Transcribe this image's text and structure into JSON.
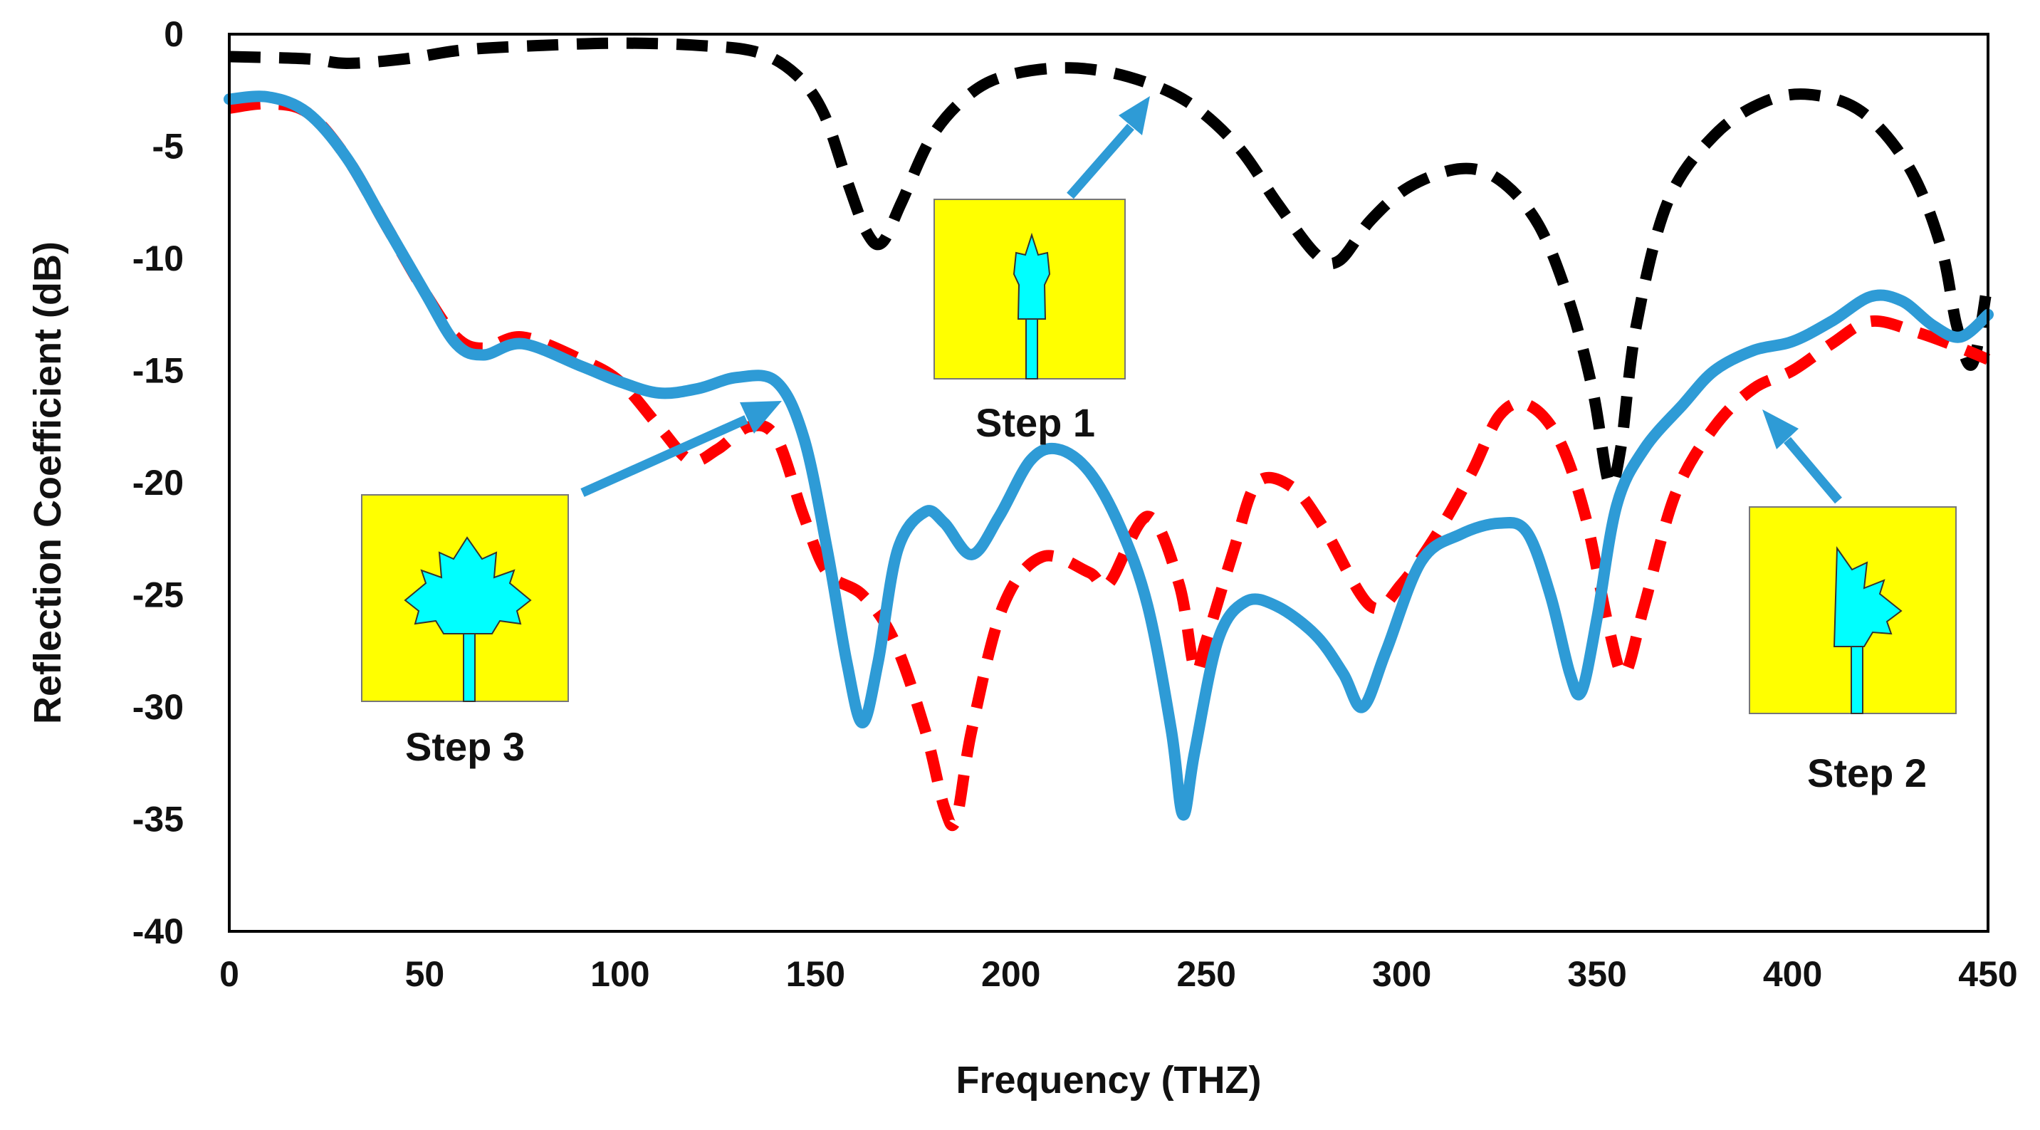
{
  "chart_data": {
    "type": "line",
    "title": "",
    "xlabel": "Frequency (THZ)",
    "ylabel": "Reflection Coefficient (dB)",
    "xlim": [
      0,
      450
    ],
    "ylim": [
      -40,
      0
    ],
    "x_ticks": [
      0,
      50,
      100,
      150,
      200,
      250,
      300,
      350,
      400,
      450
    ],
    "y_ticks": [
      0,
      -5,
      -10,
      -15,
      -20,
      -25,
      -30,
      -35,
      -40
    ],
    "grid": false,
    "series": [
      {
        "name": "Step 1",
        "color": "#000000",
        "style": "dashed",
        "points": [
          [
            0,
            -1
          ],
          [
            20,
            -1.1
          ],
          [
            30,
            -1.3
          ],
          [
            45,
            -1.1
          ],
          [
            60,
            -0.7
          ],
          [
            80,
            -0.5
          ],
          [
            100,
            -0.4
          ],
          [
            120,
            -0.5
          ],
          [
            135,
            -0.8
          ],
          [
            145,
            -1.8
          ],
          [
            152,
            -3.5
          ],
          [
            158,
            -6.5
          ],
          [
            163,
            -8.8
          ],
          [
            167,
            -9.3
          ],
          [
            172,
            -7.5
          ],
          [
            180,
            -4.5
          ],
          [
            190,
            -2.6
          ],
          [
            200,
            -1.8
          ],
          [
            215,
            -1.5
          ],
          [
            230,
            -1.9
          ],
          [
            245,
            -3
          ],
          [
            258,
            -5
          ],
          [
            268,
            -7.5
          ],
          [
            278,
            -9.8
          ],
          [
            284,
            -10.1
          ],
          [
            292,
            -8.3
          ],
          [
            302,
            -6.8
          ],
          [
            315,
            -6
          ],
          [
            325,
            -6.5
          ],
          [
            335,
            -8.5
          ],
          [
            343,
            -12
          ],
          [
            349,
            -16
          ],
          [
            353,
            -20
          ],
          [
            356,
            -18.5
          ],
          [
            360,
            -13
          ],
          [
            368,
            -7.5
          ],
          [
            380,
            -4.5
          ],
          [
            393,
            -3
          ],
          [
            405,
            -2.7
          ],
          [
            418,
            -3.5
          ],
          [
            430,
            -6
          ],
          [
            438,
            -9.5
          ],
          [
            442,
            -13
          ],
          [
            446,
            -14.7
          ],
          [
            450,
            -11
          ]
        ]
      },
      {
        "name": "Step 2",
        "color": "#ff0000",
        "style": "dashed",
        "points": [
          [
            0,
            -3.3
          ],
          [
            10,
            -3.1
          ],
          [
            20,
            -3.5
          ],
          [
            30,
            -5.5
          ],
          [
            40,
            -8.5
          ],
          [
            50,
            -11.5
          ],
          [
            58,
            -13.5
          ],
          [
            65,
            -14
          ],
          [
            75,
            -13.5
          ],
          [
            90,
            -14.5
          ],
          [
            100,
            -15.5
          ],
          [
            110,
            -17.5
          ],
          [
            118,
            -19
          ],
          [
            125,
            -18.5
          ],
          [
            133,
            -17.5
          ],
          [
            140,
            -18
          ],
          [
            147,
            -21.5
          ],
          [
            153,
            -24
          ],
          [
            162,
            -25
          ],
          [
            170,
            -27
          ],
          [
            178,
            -31
          ],
          [
            183,
            -34.5
          ],
          [
            186,
            -35
          ],
          [
            190,
            -31
          ],
          [
            198,
            -25.5
          ],
          [
            208,
            -23.3
          ],
          [
            220,
            -24
          ],
          [
            225,
            -24.5
          ],
          [
            235,
            -21.5
          ],
          [
            243,
            -24.5
          ],
          [
            247,
            -28.3
          ],
          [
            250,
            -27
          ],
          [
            257,
            -23
          ],
          [
            263,
            -20
          ],
          [
            272,
            -20.2
          ],
          [
            280,
            -22
          ],
          [
            292,
            -25.5
          ],
          [
            300,
            -24.5
          ],
          [
            310,
            -22
          ],
          [
            318,
            -19.5
          ],
          [
            325,
            -17
          ],
          [
            332,
            -16.5
          ],
          [
            340,
            -18
          ],
          [
            347,
            -21.5
          ],
          [
            353,
            -26.5
          ],
          [
            357,
            -28.5
          ],
          [
            362,
            -25.5
          ],
          [
            370,
            -20.5
          ],
          [
            380,
            -17.5
          ],
          [
            390,
            -15.8
          ],
          [
            400,
            -15
          ],
          [
            410,
            -13.8
          ],
          [
            420,
            -12.8
          ],
          [
            432,
            -13.3
          ],
          [
            443,
            -14
          ],
          [
            450,
            -14.5
          ]
        ]
      },
      {
        "name": "Step 3",
        "color": "#2e9bd6",
        "style": "solid",
        "points": [
          [
            0,
            -2.9
          ],
          [
            10,
            -2.8
          ],
          [
            20,
            -3.5
          ],
          [
            30,
            -5.5
          ],
          [
            40,
            -8.5
          ],
          [
            50,
            -11.5
          ],
          [
            58,
            -13.8
          ],
          [
            65,
            -14.3
          ],
          [
            75,
            -13.8
          ],
          [
            90,
            -14.8
          ],
          [
            100,
            -15.5
          ],
          [
            110,
            -16
          ],
          [
            120,
            -15.8
          ],
          [
            130,
            -15.3
          ],
          [
            140,
            -15.5
          ],
          [
            147,
            -18
          ],
          [
            153,
            -23
          ],
          [
            158,
            -28
          ],
          [
            162,
            -30.7
          ],
          [
            166,
            -28
          ],
          [
            171,
            -23
          ],
          [
            178,
            -21.3
          ],
          [
            183,
            -21.8
          ],
          [
            190,
            -23.2
          ],
          [
            197,
            -21.5
          ],
          [
            205,
            -19
          ],
          [
            212,
            -18.5
          ],
          [
            220,
            -19.5
          ],
          [
            228,
            -22
          ],
          [
            235,
            -25.5
          ],
          [
            241,
            -31
          ],
          [
            244,
            -34.8
          ],
          [
            247,
            -32
          ],
          [
            253,
            -27
          ],
          [
            260,
            -25.3
          ],
          [
            268,
            -25.5
          ],
          [
            278,
            -26.8
          ],
          [
            285,
            -28.5
          ],
          [
            290,
            -30
          ],
          [
            296,
            -27.5
          ],
          [
            305,
            -23.5
          ],
          [
            315,
            -22.3
          ],
          [
            325,
            -21.8
          ],
          [
            332,
            -22.2
          ],
          [
            338,
            -25
          ],
          [
            343,
            -28.5
          ],
          [
            346,
            -29.3
          ],
          [
            350,
            -26
          ],
          [
            355,
            -21
          ],
          [
            362,
            -18.5
          ],
          [
            372,
            -16.5
          ],
          [
            380,
            -15
          ],
          [
            390,
            -14.1
          ],
          [
            400,
            -13.7
          ],
          [
            410,
            -12.8
          ],
          [
            420,
            -11.7
          ],
          [
            428,
            -11.9
          ],
          [
            436,
            -13
          ],
          [
            443,
            -13.5
          ],
          [
            450,
            -12.5
          ]
        ]
      }
    ],
    "annotations": [
      {
        "label": "Step 1",
        "inset": "step1"
      },
      {
        "label": "Step 2",
        "inset": "step2"
      },
      {
        "label": "Step 3",
        "inset": "step3"
      }
    ],
    "colors": {
      "inset_background": "#ffff00",
      "inset_shape": "#00ffff",
      "arrow": "#2e9bd6"
    }
  }
}
